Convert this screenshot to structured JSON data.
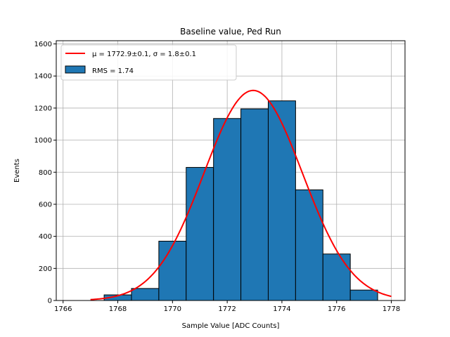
{
  "chart_data": {
    "type": "bar",
    "title": "Baseline value, Ped Run",
    "xlabel": "Sample Value [ADC Counts]",
    "ylabel": "Events",
    "xlim": [
      1765.75,
      1778.5
    ],
    "ylim": [
      0,
      1620
    ],
    "x_ticks": [
      1766,
      1768,
      1770,
      1772,
      1774,
      1776,
      1778
    ],
    "y_ticks": [
      0,
      200,
      400,
      600,
      800,
      1000,
      1200,
      1400,
      1600
    ],
    "grid": true,
    "legend_position": "upper-left",
    "bins": [
      {
        "left": 1766.5,
        "right": 1767.5,
        "value": 0
      },
      {
        "left": 1767.5,
        "right": 1768.5,
        "value": 35
      },
      {
        "left": 1768.5,
        "right": 1769.5,
        "value": 75
      },
      {
        "left": 1769.5,
        "right": 1770.5,
        "value": 370
      },
      {
        "left": 1770.5,
        "right": 1771.5,
        "value": 830
      },
      {
        "left": 1771.5,
        "right": 1772.5,
        "value": 1135
      },
      {
        "left": 1772.5,
        "right": 1773.5,
        "value": 1195
      },
      {
        "left": 1773.5,
        "right": 1774.5,
        "value": 1245
      },
      {
        "left": 1774.5,
        "right": 1775.5,
        "value": 690
      },
      {
        "left": 1775.5,
        "right": 1776.5,
        "value": 290
      },
      {
        "left": 1776.5,
        "right": 1777.5,
        "value": 65
      }
    ],
    "fit": {
      "type": "gaussian",
      "mu": 1772.95,
      "sigma": 1.8,
      "amplitude": 1310,
      "x_range": [
        1767,
        1778
      ]
    },
    "legend": [
      {
        "label_prefix": "μ = 1772.9±0.1, σ = 1.8±0.1",
        "kind": "line"
      },
      {
        "label_prefix": "RMS = 1.74",
        "kind": "bar"
      }
    ],
    "colors": {
      "bar_fill": "#1f77b4",
      "bar_edge": "#000000",
      "fit_line": "#ff0000",
      "grid": "#b0b0b0"
    }
  }
}
